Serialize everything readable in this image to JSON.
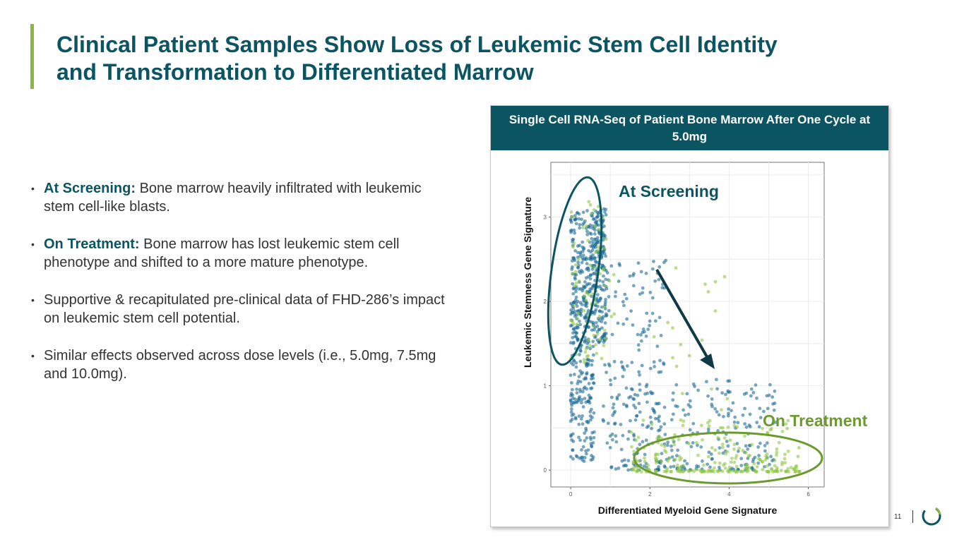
{
  "title": {
    "line1": "Clinical Patient Samples Show Loss of Leukemic Stem Cell Identity",
    "line2": "and Transformation to Differentiated Marrow"
  },
  "bullets": [
    {
      "bold": "At Screening:",
      "text": " Bone marrow heavily infiltrated with leukemic stem cell-like blasts."
    },
    {
      "bold": "On Treatment:",
      "text": " Bone marrow has lost leukemic stem cell phenotype and shifted to a more mature phenotype."
    },
    {
      "bold": "",
      "text": "Supportive & recapitulated pre-clinical data of FHD-286’s impact on leukemic stem cell potential."
    },
    {
      "bold": "",
      "text": "Similar effects observed across dose levels (i.e., 5.0mg, 7.5mg and 10.0mg)."
    }
  ],
  "panel": {
    "header": "Single Cell RNA-Seq of Patient Bone Marrow After One Cycle at 5.0mg"
  },
  "chart_data": {
    "type": "scatter",
    "title": "",
    "xlabel": "Differentiated Myeloid Gene Signature",
    "ylabel": "Leukemic Stemness Gene Signature",
    "xlim": [
      -0.5,
      6.4
    ],
    "ylim": [
      -0.2,
      3.65
    ],
    "xticks": [
      "0",
      "2",
      "4",
      "6"
    ],
    "yticks": [
      "0",
      "1",
      "2",
      "3"
    ],
    "grid": true,
    "annotations": [
      {
        "text": "At Screening",
        "color": "#0b5563"
      },
      {
        "text": "On Treatment",
        "color": "#6b9a2e"
      }
    ],
    "series": [
      {
        "color": "#1d6a94",
        "clusters": [
          {
            "x_range": [
              0.0,
              0.9
            ],
            "y_range": [
              1.5,
              3.1
            ]
          },
          {
            "x_range": [
              0.0,
              0.6
            ],
            "y_range": [
              0.1,
              1.5
            ]
          },
          {
            "x_range": [
              0.8,
              2.4
            ],
            "y_range": [
              0.3,
              2.5
            ]
          },
          {
            "x_range": [
              1.0,
              5.2
            ],
            "y_range": [
              0.0,
              1.1
            ]
          }
        ]
      },
      {
        "color": "#8dc63f",
        "clusters": [
          {
            "x_range": [
              1.5,
              5.8
            ],
            "y_range": [
              -0.02,
              0.6
            ]
          },
          {
            "x_range": [
              0.0,
              1.1
            ],
            "y_range": [
              1.2,
              3.2
            ]
          },
          {
            "x_range": [
              2.0,
              4.0
            ],
            "y_range": [
              0.5,
              2.5
            ]
          }
        ]
      }
    ]
  },
  "footer": {
    "page_number": "11",
    "logo_icon": "circle-logo-icon"
  },
  "colors": {
    "brand": "#0b5563",
    "accent": "#8ab840",
    "screening": "#1d6a94",
    "treatment": "#8dc63f"
  }
}
